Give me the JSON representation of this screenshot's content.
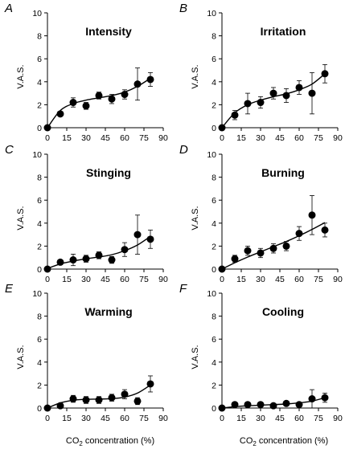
{
  "figure": {
    "xlabel_prefix": "CO",
    "xlabel_sub": "2",
    "xlabel_suffix": " concentration (%)",
    "ylabel": "V.A.S."
  },
  "chart_data": [
    {
      "type": "scatter",
      "panel": "A",
      "title": "Intensity",
      "ylabel": "V.A.S.",
      "xlim": [
        0,
        90
      ],
      "ylim": [
        0,
        10
      ],
      "xticks": [
        0,
        15,
        30,
        45,
        60,
        75,
        90
      ],
      "yticks": [
        0,
        2,
        4,
        6,
        8,
        10
      ],
      "x": [
        0,
        10,
        20,
        30,
        40,
        50,
        60,
        70,
        80
      ],
      "y": [
        0,
        1.2,
        2.2,
        1.9,
        2.8,
        2.5,
        2.9,
        3.8,
        4.2
      ],
      "err": [
        0,
        0.2,
        0.4,
        0.3,
        0.3,
        0.4,
        0.4,
        1.4,
        0.6
      ],
      "fit": {
        "x": [
          0,
          10,
          20,
          30,
          40,
          50,
          60,
          70,
          80
        ],
        "y": [
          0,
          1.5,
          2.1,
          2.4,
          2.6,
          2.8,
          3.1,
          3.6,
          4.3
        ]
      }
    },
    {
      "type": "scatter",
      "panel": "B",
      "title": "Irritation",
      "ylabel": "V.A.S.",
      "xlim": [
        0,
        90
      ],
      "ylim": [
        0,
        10
      ],
      "xticks": [
        0,
        15,
        30,
        45,
        60,
        75,
        90
      ],
      "yticks": [
        0,
        2,
        4,
        6,
        8,
        10
      ],
      "x": [
        0,
        10,
        20,
        30,
        40,
        50,
        60,
        70,
        80
      ],
      "y": [
        0,
        1.1,
        2.1,
        2.2,
        3.0,
        2.8,
        3.5,
        3.0,
        4.7
      ],
      "err": [
        0,
        0.4,
        0.9,
        0.5,
        0.5,
        0.6,
        0.6,
        1.8,
        0.8
      ],
      "fit": {
        "x": [
          0,
          10,
          20,
          30,
          40,
          50,
          60,
          70,
          80
        ],
        "y": [
          0,
          1.3,
          2.0,
          2.4,
          2.7,
          2.95,
          3.3,
          3.8,
          4.7
        ]
      }
    },
    {
      "type": "scatter",
      "panel": "C",
      "title": "Stinging",
      "ylabel": "V.A.S.",
      "xlim": [
        0,
        90
      ],
      "ylim": [
        0,
        10
      ],
      "xticks": [
        0,
        15,
        30,
        45,
        60,
        75,
        90
      ],
      "yticks": [
        0,
        2,
        4,
        6,
        8,
        10
      ],
      "x": [
        0,
        10,
        20,
        30,
        40,
        50,
        60,
        70,
        80
      ],
      "y": [
        0,
        0.6,
        0.8,
        0.9,
        1.2,
        0.8,
        1.7,
        3.0,
        2.6
      ],
      "err": [
        0,
        0.2,
        0.5,
        0.3,
        0.3,
        0.3,
        0.6,
        1.7,
        0.8
      ],
      "fit": {
        "x": [
          0,
          10,
          20,
          30,
          40,
          50,
          60,
          70,
          80
        ],
        "y": [
          0.05,
          0.45,
          0.7,
          0.9,
          1.05,
          1.25,
          1.6,
          2.1,
          2.85
        ]
      }
    },
    {
      "type": "scatter",
      "panel": "D",
      "title": "Burning",
      "ylabel": "V.A.S.",
      "xlim": [
        0,
        90
      ],
      "ylim": [
        0,
        10
      ],
      "xticks": [
        0,
        15,
        30,
        45,
        60,
        75,
        90
      ],
      "yticks": [
        0,
        2,
        4,
        6,
        8,
        10
      ],
      "x": [
        0,
        10,
        20,
        30,
        40,
        50,
        60,
        70,
        80
      ],
      "y": [
        0,
        0.9,
        1.6,
        1.4,
        1.8,
        2.0,
        3.1,
        4.7,
        3.4
      ],
      "err": [
        0,
        0.3,
        0.4,
        0.4,
        0.4,
        0.4,
        0.6,
        1.7,
        0.6
      ],
      "fit": {
        "x": [
          0,
          10,
          20,
          30,
          40,
          50,
          60,
          70,
          80
        ],
        "y": [
          0,
          0.55,
          1.05,
          1.5,
          1.95,
          2.4,
          2.9,
          3.45,
          4.05
        ]
      }
    },
    {
      "type": "scatter",
      "panel": "E",
      "title": "Warming",
      "ylabel": "V.A.S.",
      "xlim": [
        0,
        90
      ],
      "ylim": [
        0,
        10
      ],
      "xticks": [
        0,
        15,
        30,
        45,
        60,
        75,
        90
      ],
      "yticks": [
        0,
        2,
        4,
        6,
        8,
        10
      ],
      "x": [
        0,
        10,
        20,
        30,
        40,
        50,
        60,
        70,
        80
      ],
      "y": [
        0,
        0.2,
        0.8,
        0.7,
        0.7,
        0.9,
        1.2,
        0.6,
        2.1
      ],
      "err": [
        0,
        0.1,
        0.3,
        0.3,
        0.3,
        0.3,
        0.4,
        0.3,
        0.7
      ],
      "fit": {
        "x": [
          0,
          10,
          20,
          30,
          40,
          50,
          60,
          70,
          80
        ],
        "y": [
          0,
          0.45,
          0.68,
          0.76,
          0.78,
          0.82,
          0.95,
          1.3,
          2.0
        ]
      }
    },
    {
      "type": "scatter",
      "panel": "F",
      "title": "Cooling",
      "ylabel": "V.A.S.",
      "xlim": [
        0,
        90
      ],
      "ylim": [
        0,
        10
      ],
      "xticks": [
        0,
        15,
        30,
        45,
        60,
        75,
        90
      ],
      "yticks": [
        0,
        2,
        4,
        6,
        8,
        10
      ],
      "x": [
        0,
        10,
        20,
        30,
        40,
        50,
        60,
        70,
        80
      ],
      "y": [
        0,
        0.3,
        0.3,
        0.3,
        0.2,
        0.4,
        0.3,
        0.8,
        0.9
      ],
      "err": [
        0,
        0.1,
        0.1,
        0.1,
        0.1,
        0.2,
        0.1,
        0.8,
        0.4
      ],
      "fit": {
        "x": [
          0,
          10,
          20,
          30,
          40,
          50,
          60,
          70,
          80
        ],
        "y": [
          0,
          0.12,
          0.2,
          0.25,
          0.3,
          0.35,
          0.45,
          0.6,
          0.9
        ]
      }
    }
  ]
}
